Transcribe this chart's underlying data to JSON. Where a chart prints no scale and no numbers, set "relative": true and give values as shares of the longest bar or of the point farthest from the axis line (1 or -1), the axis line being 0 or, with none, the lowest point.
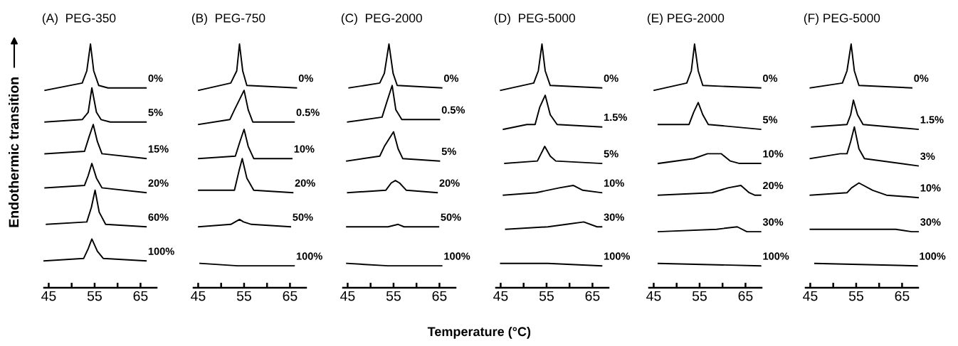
{
  "chart_data": [
    {
      "type": "line",
      "title": "(A)  PEG-350",
      "ylabel": "Endothermic transition",
      "relative": true,
      "tick_labels": "x",
      "xlim": [
        44,
        68.5
      ],
      "xticks": [
        45,
        55,
        65
      ],
      "series": [
        {
          "name": "0%",
          "color": "#000000",
          "x": [
            44.2,
            52.3,
            53.3,
            54.1,
            54.8,
            55.9,
            57.9,
            66.2
          ],
          "values": [
            0.81,
            0.84,
            0.89,
            1.0,
            0.89,
            0.83,
            0.82,
            0.82
          ]
        },
        {
          "name": "5%",
          "color": "#000000",
          "x": [
            44.2,
            52.3,
            53.6,
            54.4,
            55.4,
            56.4,
            58.4,
            66.2
          ],
          "values": [
            0.68,
            0.69,
            0.72,
            0.82,
            0.72,
            0.69,
            0.68,
            0.68
          ]
        },
        {
          "name": "15%",
          "color": "#000000",
          "x": [
            44.2,
            52.8,
            53.8,
            54.7,
            55.6,
            56.6,
            66.2
          ],
          "values": [
            0.55,
            0.56,
            0.62,
            0.67,
            0.6,
            0.55,
            0.53
          ]
        },
        {
          "name": "20%",
          "color": "#000000",
          "x": [
            44.2,
            52.8,
            53.6,
            54.4,
            55.4,
            56.6,
            66.2
          ],
          "values": [
            0.41,
            0.42,
            0.46,
            0.51,
            0.45,
            0.41,
            0.39
          ]
        },
        {
          "name": "60%",
          "color": "#000000",
          "x": [
            44.5,
            53.3,
            54.3,
            55.1,
            56.0,
            57.4,
            66.2
          ],
          "values": [
            0.26,
            0.27,
            0.33,
            0.4,
            0.31,
            0.26,
            0.25
          ]
        },
        {
          "name": "100%",
          "color": "#000000",
          "x": [
            44.0,
            52.6,
            53.6,
            54.4,
            55.6,
            56.9,
            66.2
          ],
          "values": [
            0.11,
            0.12,
            0.16,
            0.2,
            0.15,
            0.12,
            0.11
          ]
        }
      ]
    },
    {
      "type": "line",
      "title": "(B)  PEG-750",
      "relative": true,
      "tick_labels": "x",
      "xlim": [
        44,
        68.5
      ],
      "xticks": [
        45,
        55,
        65
      ],
      "series": [
        {
          "name": "0%",
          "color": "#000000",
          "x": [
            45.1,
            52.1,
            53.4,
            54.0,
            54.7,
            55.6,
            66.4
          ],
          "values": [
            0.81,
            0.84,
            0.89,
            1.0,
            0.89,
            0.83,
            0.82
          ]
        },
        {
          "name": "0.5%",
          "color": "#000000",
          "x": [
            45.1,
            51.9,
            52.9,
            55.0,
            55.9,
            56.9,
            65.9
          ],
          "values": [
            0.67,
            0.69,
            0.73,
            0.81,
            0.73,
            0.68,
            0.68
          ]
        },
        {
          "name": "10%",
          "color": "#000000",
          "x": [
            45.1,
            53.1,
            54.1,
            55.0,
            55.9,
            57.1,
            65.4
          ],
          "values": [
            0.53,
            0.54,
            0.6,
            0.65,
            0.58,
            0.53,
            0.53
          ]
        },
        {
          "name": "20%",
          "color": "#000000",
          "x": [
            45.1,
            52.9,
            53.9,
            54.6,
            55.6,
            57.1,
            65.6
          ],
          "values": [
            0.4,
            0.4,
            0.48,
            0.53,
            0.45,
            0.4,
            0.39
          ]
        },
        {
          "name": "50%",
          "color": "#000000",
          "x": [
            45.1,
            52.1,
            54.0,
            54.9,
            56.6,
            65.1
          ],
          "values": [
            0.25,
            0.26,
            0.28,
            0.27,
            0.26,
            0.25
          ]
        },
        {
          "name": "100%",
          "color": "#000000",
          "x": [
            45.4,
            53.6,
            65.9
          ],
          "values": [
            0.1,
            0.09,
            0.09
          ]
        }
      ]
    },
    {
      "type": "line",
      "title": "(C)  PEG-2000",
      "relative": true,
      "tick_labels": "x",
      "xlim": [
        44,
        68.5
      ],
      "xticks": [
        45,
        55,
        65
      ],
      "series": [
        {
          "name": "0%",
          "color": "#000000",
          "x": [
            45.3,
            52.0,
            53.0,
            54.0,
            54.9,
            55.8,
            65.5
          ],
          "values": [
            0.82,
            0.84,
            0.88,
            1.0,
            0.88,
            0.83,
            0.82
          ]
        },
        {
          "name": "0.5%",
          "color": "#000000",
          "x": [
            45.0,
            52.5,
            53.5,
            54.7,
            55.5,
            56.8,
            65.0
          ],
          "values": [
            0.68,
            0.7,
            0.76,
            0.83,
            0.73,
            0.69,
            0.69
          ]
        },
        {
          "name": "5%",
          "color": "#000000",
          "x": [
            44.8,
            52.0,
            53.0,
            55.0,
            56.0,
            57.0,
            65.0
          ],
          "values": [
            0.52,
            0.54,
            0.58,
            0.64,
            0.57,
            0.53,
            0.52
          ]
        },
        {
          "name": "20%",
          "color": "#000000",
          "x": [
            45.0,
            53.3,
            54.5,
            55.4,
            56.3,
            57.8,
            64.5
          ],
          "values": [
            0.39,
            0.4,
            0.43,
            0.44,
            0.43,
            0.4,
            0.39
          ]
        },
        {
          "name": "50%",
          "color": "#000000",
          "x": [
            44.8,
            53.8,
            56.0,
            57.3,
            64.8
          ],
          "values": [
            0.25,
            0.25,
            0.26,
            0.25,
            0.25
          ]
        },
        {
          "name": "100%",
          "color": "#000000",
          "x": [
            44.8,
            53.8,
            65.5
          ],
          "values": [
            0.1,
            0.09,
            0.09
          ]
        }
      ]
    },
    {
      "type": "line",
      "title": "(D)  PEG-5000",
      "xlabel": "Temperature (°C)",
      "relative": true,
      "tick_labels": "x",
      "xlim": [
        44,
        68.5
      ],
      "xticks": [
        45,
        55,
        65
      ],
      "series": [
        {
          "name": "0%",
          "color": "#000000",
          "x": [
            45.0,
            52.2,
            53.2,
            54.0,
            54.7,
            55.8,
            67.0
          ],
          "values": [
            0.81,
            0.84,
            0.89,
            1.0,
            0.89,
            0.83,
            0.82
          ]
        },
        {
          "name": "1.5%",
          "color": "#000000",
          "x": [
            45.6,
            50.7,
            52.5,
            53.5,
            54.7,
            55.8,
            57.3,
            67.0
          ],
          "values": [
            0.65,
            0.67,
            0.67,
            0.74,
            0.79,
            0.71,
            0.67,
            0.66
          ]
        },
        {
          "name": "5%",
          "color": "#000000",
          "x": [
            45.9,
            53.0,
            53.8,
            54.6,
            55.8,
            57.0,
            67.0
          ],
          "values": [
            0.51,
            0.52,
            0.55,
            0.58,
            0.54,
            0.52,
            0.51
          ]
        },
        {
          "name": "10%",
          "color": "#000000",
          "x": [
            45.6,
            52.7,
            57.8,
            60.8,
            62.9,
            67.0
          ],
          "values": [
            0.38,
            0.39,
            0.41,
            0.42,
            0.4,
            0.39
          ]
        },
        {
          "name": "30%",
          "color": "#000000",
          "x": [
            46.1,
            55.3,
            59.3,
            63.1,
            66.0,
            67.0
          ],
          "values": [
            0.24,
            0.25,
            0.26,
            0.27,
            0.25,
            0.25
          ]
        },
        {
          "name": "100%",
          "color": "#000000",
          "x": [
            45.0,
            55.3,
            67.0
          ],
          "values": [
            0.1,
            0.1,
            0.09
          ]
        }
      ]
    },
    {
      "type": "line",
      "title": "(E) PEG-2000",
      "relative": true,
      "tick_labels": "x",
      "xlim": [
        44,
        68.5
      ],
      "xticks": [
        45,
        55,
        65
      ],
      "series": [
        {
          "name": "0%",
          "color": "#000000",
          "x": [
            45.1,
            52.2,
            53.2,
            53.9,
            54.7,
            55.7,
            68.3
          ],
          "values": [
            0.81,
            0.84,
            0.89,
            1.0,
            0.89,
            0.83,
            0.82
          ]
        },
        {
          "name": "5%",
          "color": "#000000",
          "x": [
            46.0,
            52.7,
            53.7,
            54.7,
            55.7,
            56.9,
            68.3
          ],
          "values": [
            0.67,
            0.67,
            0.72,
            0.76,
            0.71,
            0.67,
            0.65
          ]
        },
        {
          "name": "10%",
          "color": "#000000",
          "x": [
            46.0,
            53.7,
            56.7,
            59.7,
            61.7,
            63.7,
            68.3
          ],
          "values": [
            0.51,
            0.53,
            0.55,
            0.55,
            0.52,
            0.51,
            0.51
          ]
        },
        {
          "name": "20%",
          "color": "#000000",
          "x": [
            46.0,
            57.7,
            61.2,
            64.0,
            65.8,
            67.0,
            68.3
          ],
          "values": [
            0.38,
            0.39,
            0.41,
            0.42,
            0.39,
            0.38,
            0.38
          ]
        },
        {
          "name": "30%",
          "color": "#000000",
          "x": [
            46.0,
            58.7,
            63.2,
            65.3,
            68.3
          ],
          "values": [
            0.23,
            0.24,
            0.25,
            0.23,
            0.23
          ]
        },
        {
          "name": "100%",
          "color": "#000000",
          "x": [
            46.0,
            68.3
          ],
          "values": [
            0.1,
            0.09
          ]
        }
      ]
    },
    {
      "type": "line",
      "title": "(F) PEG-5000",
      "relative": true,
      "tick_labels": "x",
      "xlim": [
        44,
        68.5
      ],
      "xticks": [
        45,
        55,
        65
      ],
      "series": [
        {
          "name": "0%",
          "color": "#000000",
          "x": [
            45.0,
            52.0,
            53.0,
            53.9,
            54.6,
            55.6,
            67.1
          ],
          "values": [
            0.82,
            0.84,
            0.89,
            1.0,
            0.89,
            0.83,
            0.82
          ]
        },
        {
          "name": "1.5%",
          "color": "#000000",
          "x": [
            45.3,
            53.0,
            53.8,
            54.4,
            55.3,
            56.5,
            68.5
          ],
          "values": [
            0.66,
            0.67,
            0.71,
            0.77,
            0.71,
            0.67,
            0.65
          ]
        },
        {
          "name": "3%",
          "color": "#000000",
          "x": [
            45.0,
            51.5,
            53.0,
            53.8,
            54.6,
            55.6,
            56.8,
            68.5
          ],
          "values": [
            0.53,
            0.55,
            0.55,
            0.6,
            0.66,
            0.57,
            0.53,
            0.5
          ]
        },
        {
          "name": "10%",
          "color": "#000000",
          "x": [
            45.0,
            53.0,
            54.0,
            55.6,
            58.6,
            61.6,
            68.5
          ],
          "values": [
            0.38,
            0.39,
            0.41,
            0.43,
            0.4,
            0.38,
            0.37
          ]
        },
        {
          "name": "30%",
          "color": "#000000",
          "x": [
            45.0,
            60.1,
            63.6,
            67.1,
            68.5
          ],
          "values": [
            0.24,
            0.24,
            0.24,
            0.23,
            0.23
          ]
        },
        {
          "name": "100%",
          "color": "#000000",
          "x": [
            46.0,
            68.3
          ],
          "values": [
            0.1,
            0.09
          ]
        }
      ]
    }
  ]
}
